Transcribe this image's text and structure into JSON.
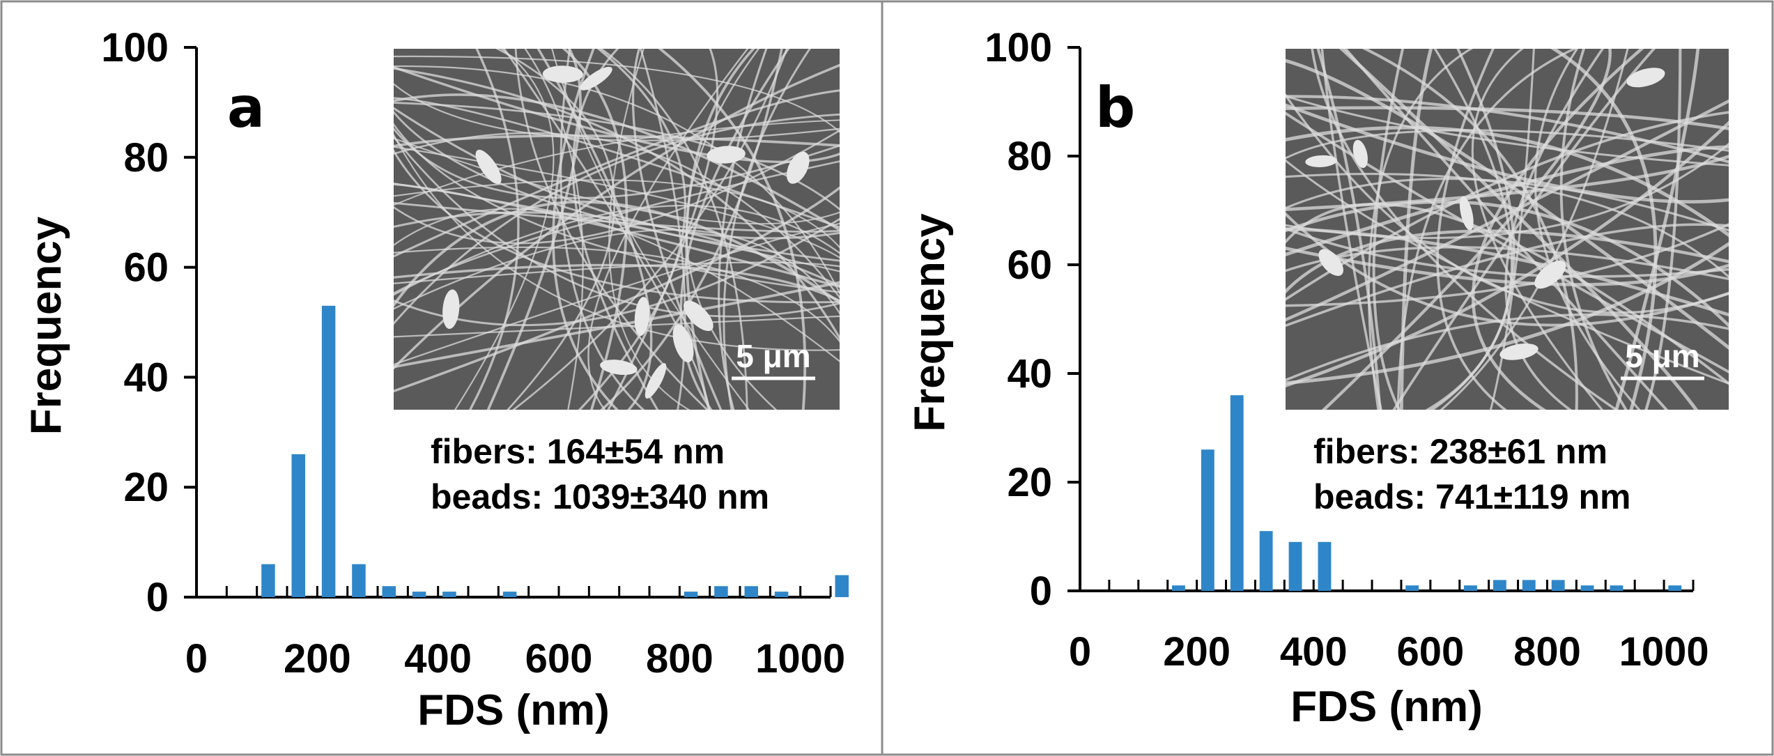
{
  "colors": {
    "bar": "#2e86c8",
    "axis": "#000000",
    "frame": "#8c8c8c",
    "sem_bg": "#5a5a5a",
    "fiber": "#dcdcdc"
  },
  "chart_data": [
    {
      "type": "bar",
      "panel": "a",
      "xlabel": "FDS (nm)",
      "ylabel": "Frequency",
      "xlim": [
        0,
        1050
      ],
      "ylim": [
        0,
        100
      ],
      "x_ticks": [
        0,
        200,
        400,
        600,
        800,
        1000
      ],
      "y_ticks": [
        0,
        20,
        40,
        60,
        80,
        100
      ],
      "bin_centers": [
        0,
        50,
        100,
        150,
        200,
        250,
        300,
        350,
        400,
        450,
        500,
        550,
        600,
        650,
        700,
        750,
        800,
        850,
        900,
        950,
        1000,
        1050
      ],
      "values": [
        0,
        0,
        6,
        26,
        53,
        6,
        2,
        1,
        1,
        0,
        1,
        0,
        0,
        0,
        0,
        0,
        1,
        2,
        2,
        1,
        0,
        4
      ],
      "annotations": [
        "fibers: 164±54 nm",
        "beads: 1039±340 nm"
      ],
      "scale_bar": "5 μm"
    },
    {
      "type": "bar",
      "panel": "b",
      "xlabel": "FDS (nm)",
      "ylabel": "Frequency",
      "xlim": [
        0,
        1050
      ],
      "ylim": [
        0,
        100
      ],
      "x_ticks": [
        0,
        200,
        400,
        600,
        800,
        1000
      ],
      "y_ticks": [
        0,
        20,
        40,
        60,
        80,
        100
      ],
      "bin_centers": [
        0,
        50,
        100,
        150,
        200,
        250,
        300,
        350,
        400,
        450,
        500,
        550,
        600,
        650,
        700,
        750,
        800,
        850,
        900,
        950,
        1000,
        1050
      ],
      "values": [
        0,
        0,
        0,
        1,
        26,
        36,
        11,
        9,
        9,
        0,
        0,
        1,
        0,
        1,
        2,
        2,
        2,
        1,
        1,
        0,
        1,
        0
      ],
      "annotations": [
        "fibers: 238±61 nm",
        "beads: 741±119 nm"
      ],
      "scale_bar": "5 μm"
    }
  ]
}
